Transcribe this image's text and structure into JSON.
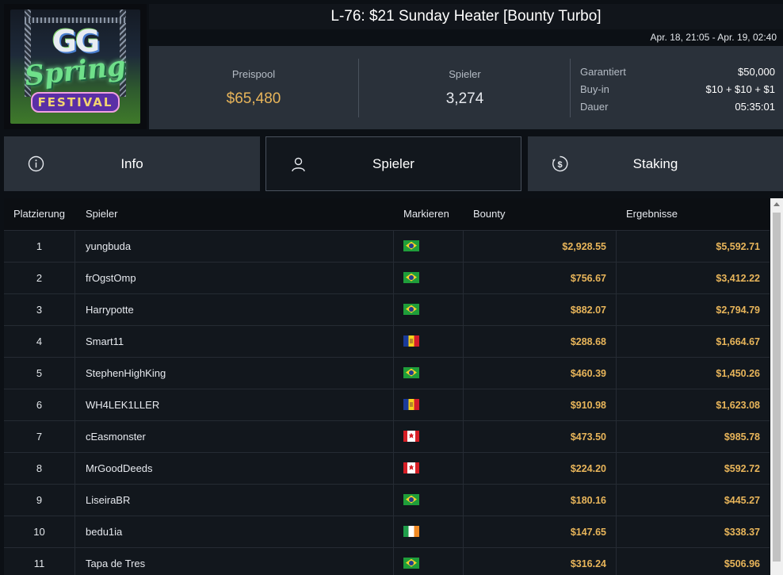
{
  "logo": {
    "gg": "GG",
    "spring": "Spring",
    "festival": "FESTIVAL"
  },
  "header": {
    "title": "L-76: $21 Sunday Heater [Bounty Turbo]",
    "date_range": "Apr. 18, 21:05 - Apr. 19, 02:40"
  },
  "stats": {
    "prize_pool_label": "Preispool",
    "prize_pool_value": "$65,480",
    "players_label": "Spieler",
    "players_value": "3,274",
    "meta": [
      {
        "key": "Garantiert",
        "value": "$50,000"
      },
      {
        "key": "Buy-in",
        "value": "$10 + $10 + $1"
      },
      {
        "key": "Dauer",
        "value": "05:35:01"
      }
    ]
  },
  "tabs": [
    {
      "label": "Info",
      "icon": "info-icon"
    },
    {
      "label": "Spieler",
      "icon": "user-icon",
      "active": true
    },
    {
      "label": "Staking",
      "icon": "dollar-coin-icon"
    }
  ],
  "table": {
    "headers": [
      "Platzierung",
      "Spieler",
      "Markieren",
      "Bounty",
      "Ergebnisse"
    ],
    "rows": [
      {
        "rank": "1",
        "player": "yungbuda",
        "flag": "br",
        "bounty": "$2,928.55",
        "result": "$5,592.71"
      },
      {
        "rank": "2",
        "player": "frOgstOmp",
        "flag": "br",
        "bounty": "$756.67",
        "result": "$3,412.22"
      },
      {
        "rank": "3",
        "player": "Harrypotte",
        "flag": "br",
        "bounty": "$882.07",
        "result": "$2,794.79"
      },
      {
        "rank": "4",
        "player": "Smart11",
        "flag": "ad",
        "bounty": "$288.68",
        "result": "$1,664.67"
      },
      {
        "rank": "5",
        "player": "StephenHighKing",
        "flag": "br",
        "bounty": "$460.39",
        "result": "$1,450.26"
      },
      {
        "rank": "6",
        "player": "WH4LEK1LLER",
        "flag": "ad",
        "bounty": "$910.98",
        "result": "$1,623.08"
      },
      {
        "rank": "7",
        "player": "cEasmonster",
        "flag": "ca",
        "bounty": "$473.50",
        "result": "$985.78"
      },
      {
        "rank": "8",
        "player": "MrGoodDeeds",
        "flag": "ca",
        "bounty": "$224.20",
        "result": "$592.72"
      },
      {
        "rank": "9",
        "player": "LiseiraBR",
        "flag": "br",
        "bounty": "$180.16",
        "result": "$445.27"
      },
      {
        "rank": "10",
        "player": "bedu1ia",
        "flag": "ie",
        "bounty": "$147.65",
        "result": "$338.37"
      },
      {
        "rank": "11",
        "player": "Tapa de Tres",
        "flag": "br",
        "bounty": "$316.24",
        "result": "$506.96"
      }
    ]
  },
  "colors": {
    "accent_gold": "#e8b55a",
    "panel": "#2a313a",
    "background": "#0c1015"
  }
}
